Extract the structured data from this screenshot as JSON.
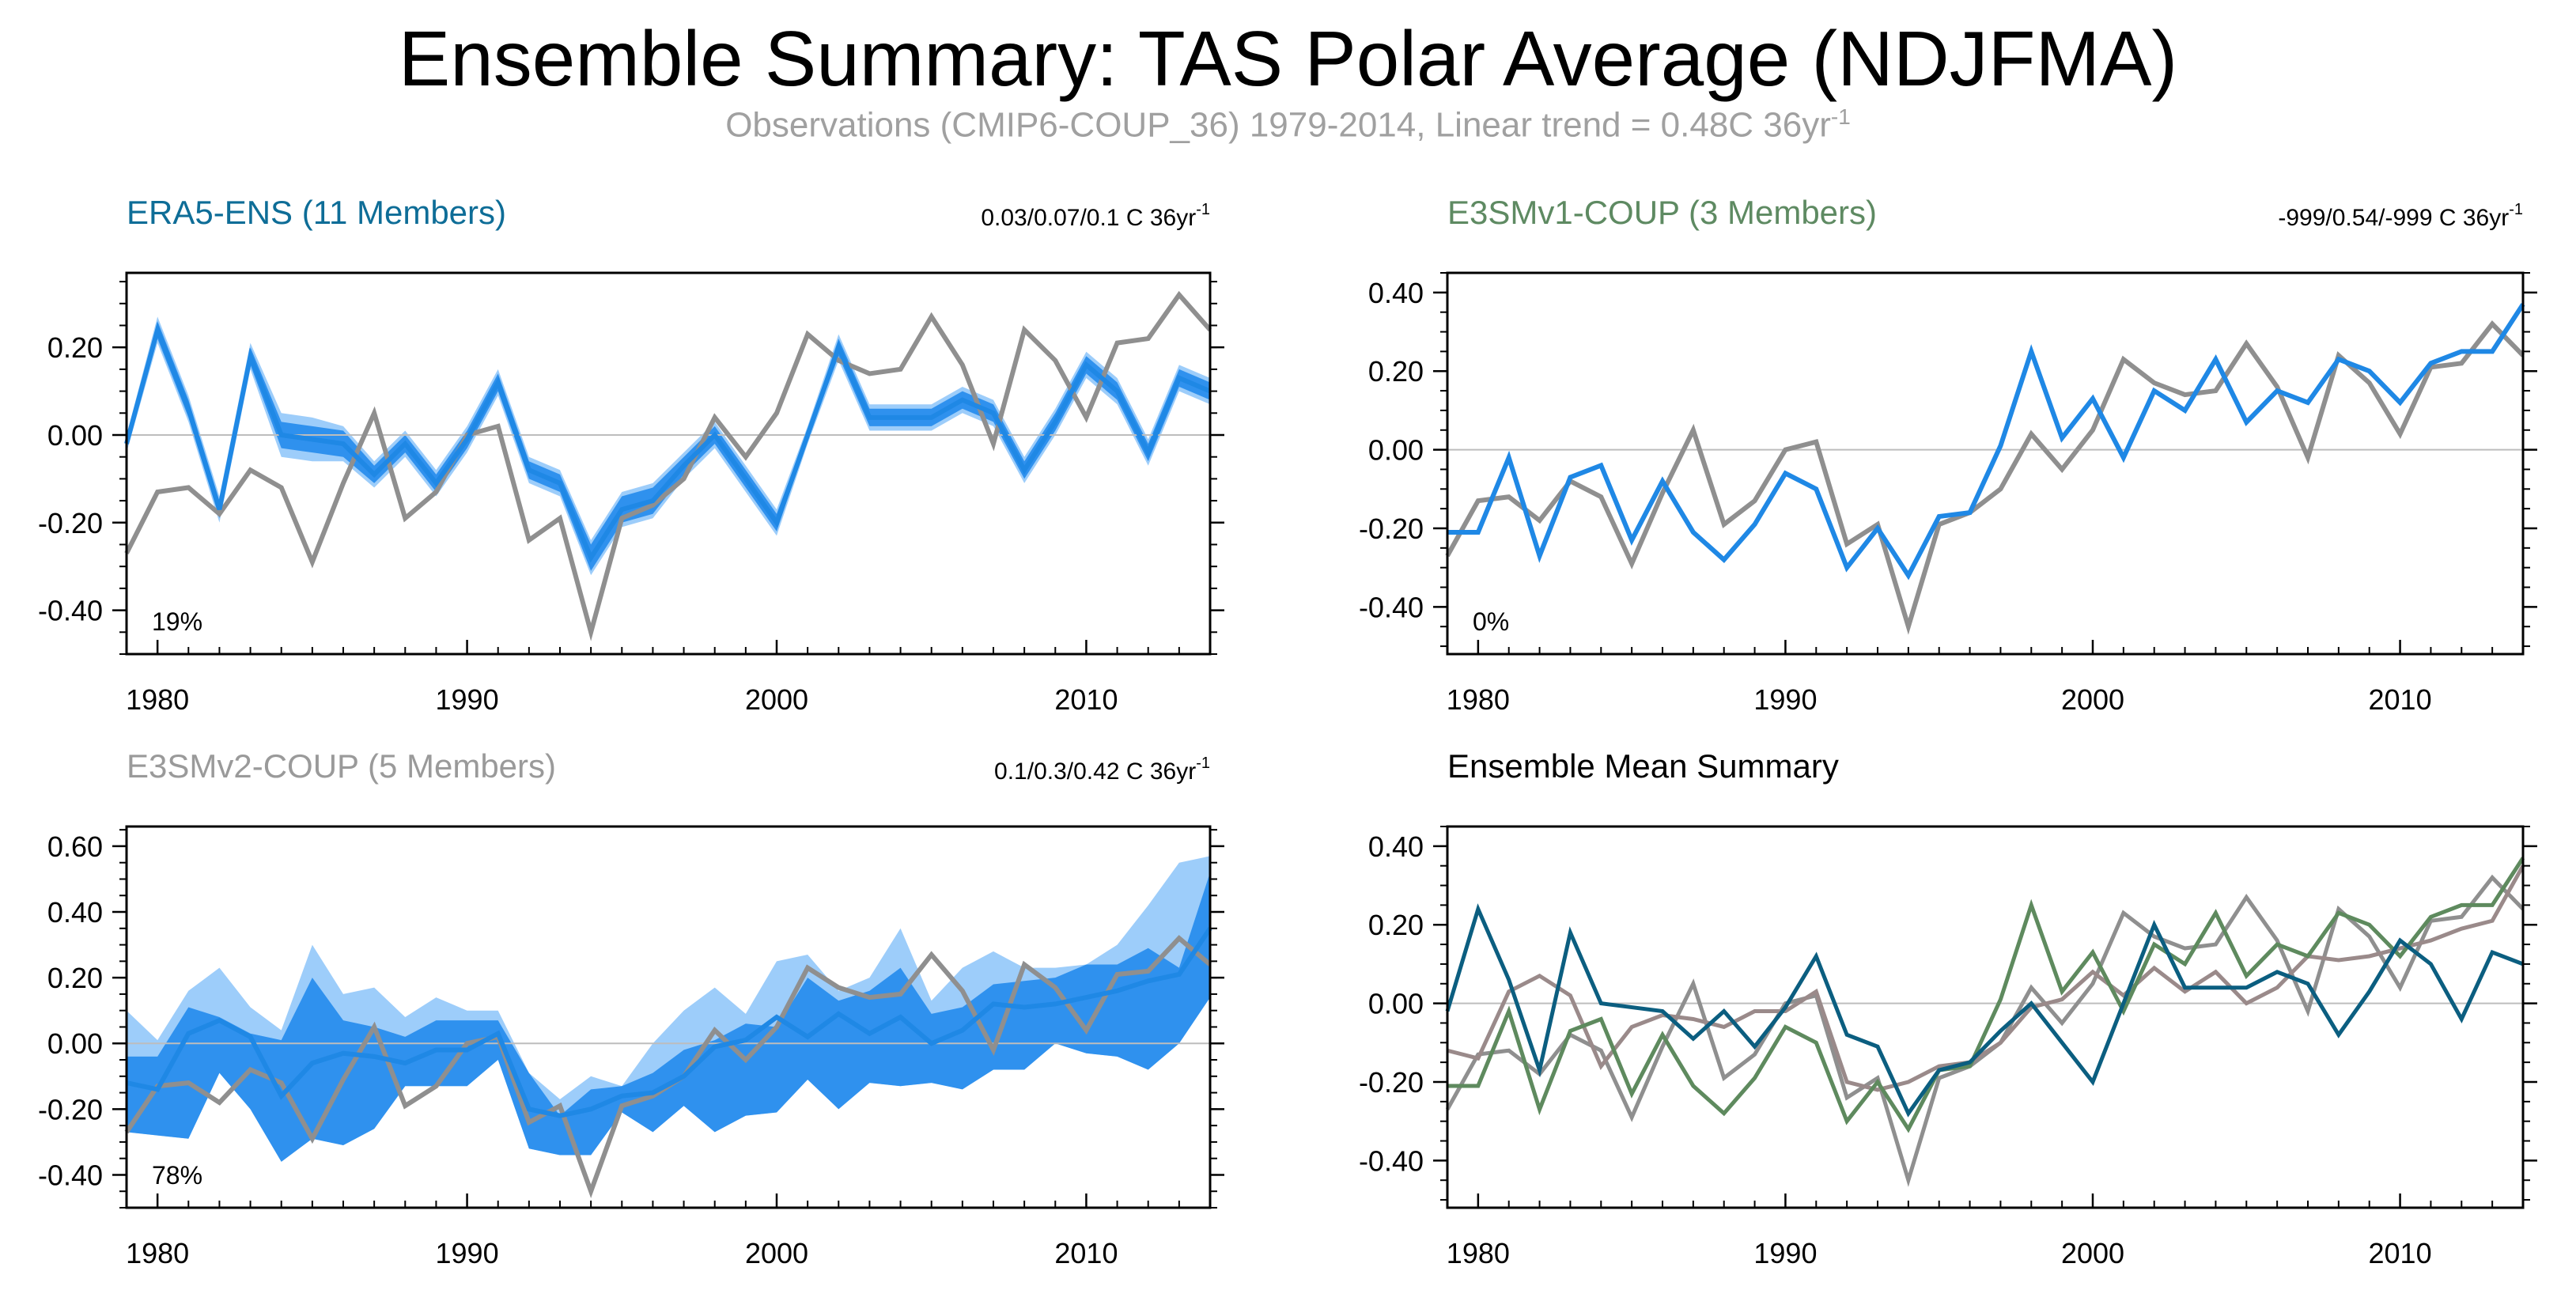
{
  "title": "Ensemble Summary: TAS Polar Average (NDJFMA)",
  "subtitle": "Observations (CMIP6-COUP_36) 1979-2014, Linear trend = 0.48C 36yr",
  "subtitle_sup": "-1",
  "colors": {
    "obs": "#8f8f8f",
    "model_line": "#1f88e5",
    "band_inner": "#2f91ee",
    "band_outer": "#9dcdfa",
    "era5_title": "#0e6d97",
    "e3smv1_title": "#5e8a62",
    "e3smv2_title": "#9a9a9a",
    "summary_era5": "#0b5e80",
    "summary_v1": "#5e8a5e",
    "summary_v2": "#9a8a8a"
  },
  "chart_data": [
    {
      "type": "line",
      "title": "ERA5-ENS (11 Members)",
      "trend_label": "0.03/0.07/0.1 C 36yr",
      "trend_sup": "-1",
      "percent_label": "19%",
      "xlim": [
        1979,
        2014
      ],
      "ylim": [
        -0.5,
        0.37
      ],
      "yticks": [
        -0.4,
        -0.2,
        0.0,
        0.2
      ],
      "ytick_labels": [
        "-0.40",
        "-0.20",
        "0.00",
        "0.20"
      ],
      "xticks": [
        1980,
        1990,
        2000,
        2010
      ],
      "xtick_labels": [
        "1980",
        "1990",
        "2000",
        "2010"
      ],
      "x_start": 1979,
      "observations": [
        -0.27,
        -0.13,
        -0.12,
        -0.18,
        -0.08,
        -0.12,
        -0.29,
        -0.11,
        0.05,
        -0.19,
        -0.13,
        0.0,
        0.02,
        -0.24,
        -0.19,
        -0.45,
        -0.19,
        -0.16,
        -0.1,
        0.04,
        -0.05,
        0.05,
        0.23,
        0.17,
        0.14,
        0.15,
        0.27,
        0.16,
        -0.02,
        0.24,
        0.17,
        0.04,
        0.21,
        0.22,
        0.32,
        0.24
      ],
      "mean": [
        -0.02,
        0.24,
        0.06,
        -0.17,
        0.18,
        0.0,
        -0.01,
        -0.02,
        -0.09,
        -0.02,
        -0.11,
        -0.01,
        0.12,
        -0.08,
        -0.11,
        -0.28,
        -0.17,
        -0.15,
        -0.07,
        0.0,
        -0.1,
        -0.2,
        0.0,
        0.2,
        0.04,
        0.04,
        0.04,
        0.08,
        0.05,
        -0.08,
        0.03,
        0.16,
        0.1,
        -0.04,
        0.13,
        0.1
      ],
      "band_inner_halfwidth": [
        0.01,
        0.02,
        0.02,
        0.02,
        0.02,
        0.03,
        0.03,
        0.03,
        0.02,
        0.02,
        0.02,
        0.02,
        0.02,
        0.02,
        0.02,
        0.03,
        0.03,
        0.03,
        0.02,
        0.02,
        0.02,
        0.02,
        0.01,
        0.02,
        0.02,
        0.02,
        0.02,
        0.02,
        0.02,
        0.02,
        0.02,
        0.02,
        0.02,
        0.02,
        0.02,
        0.02
      ],
      "band_outer_halfwidth": [
        0.02,
        0.03,
        0.03,
        0.03,
        0.03,
        0.05,
        0.05,
        0.04,
        0.03,
        0.03,
        0.03,
        0.03,
        0.03,
        0.03,
        0.03,
        0.04,
        0.04,
        0.04,
        0.03,
        0.03,
        0.03,
        0.03,
        0.02,
        0.03,
        0.03,
        0.03,
        0.03,
        0.03,
        0.03,
        0.03,
        0.03,
        0.03,
        0.03,
        0.03,
        0.03,
        0.03
      ]
    },
    {
      "type": "line",
      "title": "E3SMv1-COUP (3 Members)",
      "trend_label": "-999/0.54/-999 C 36yr",
      "trend_sup": "-1",
      "percent_label": "0%",
      "xlim": [
        1979,
        2014
      ],
      "ylim": [
        -0.52,
        0.45
      ],
      "yticks": [
        -0.4,
        -0.2,
        0.0,
        0.2,
        0.4
      ],
      "ytick_labels": [
        "-0.40",
        "-0.20",
        "0.00",
        "0.20",
        "0.40"
      ],
      "xticks": [
        1980,
        1990,
        2000,
        2010
      ],
      "xtick_labels": [
        "1980",
        "1990",
        "2000",
        "2010"
      ],
      "x_start": 1979,
      "observations": [
        -0.27,
        -0.13,
        -0.12,
        -0.18,
        -0.08,
        -0.12,
        -0.29,
        -0.11,
        0.05,
        -0.19,
        -0.13,
        0.0,
        0.02,
        -0.24,
        -0.19,
        -0.45,
        -0.19,
        -0.16,
        -0.1,
        0.04,
        -0.05,
        0.05,
        0.23,
        0.17,
        0.14,
        0.15,
        0.27,
        0.16,
        -0.02,
        0.24,
        0.17,
        0.04,
        0.21,
        0.22,
        0.32,
        0.24
      ],
      "mean": [
        -0.21,
        -0.21,
        -0.02,
        -0.27,
        -0.07,
        -0.04,
        -0.23,
        -0.08,
        -0.21,
        -0.28,
        -0.19,
        -0.06,
        -0.1,
        -0.3,
        -0.2,
        -0.32,
        -0.17,
        -0.16,
        0.01,
        0.25,
        0.03,
        0.13,
        -0.02,
        0.15,
        0.1,
        0.23,
        0.07,
        0.15,
        0.12,
        0.23,
        0.2,
        0.12,
        0.22,
        0.25,
        0.25,
        0.37
      ]
    },
    {
      "type": "line",
      "title": "E3SMv2-COUP (5 Members)",
      "trend_label": "0.1/0.3/0.42 C 36yr",
      "trend_sup": "-1",
      "percent_label": "78%",
      "xlim": [
        1979,
        2014
      ],
      "ylim": [
        -0.5,
        0.66
      ],
      "yticks": [
        -0.4,
        -0.2,
        0.0,
        0.2,
        0.4,
        0.6
      ],
      "ytick_labels": [
        "-0.40",
        "-0.20",
        "0.00",
        "0.20",
        "0.40",
        "0.60"
      ],
      "xticks": [
        1980,
        1990,
        2000,
        2010
      ],
      "xtick_labels": [
        "1980",
        "1990",
        "2000",
        "2010"
      ],
      "x_start": 1979,
      "observations": [
        -0.27,
        -0.13,
        -0.12,
        -0.18,
        -0.08,
        -0.12,
        -0.29,
        -0.11,
        0.05,
        -0.19,
        -0.13,
        0.0,
        0.02,
        -0.24,
        -0.19,
        -0.45,
        -0.19,
        -0.16,
        -0.1,
        0.04,
        -0.05,
        0.05,
        0.23,
        0.17,
        0.14,
        0.15,
        0.27,
        0.16,
        -0.02,
        0.24,
        0.17,
        0.04,
        0.21,
        0.22,
        0.32,
        0.24
      ],
      "mean": [
        -0.12,
        -0.14,
        0.03,
        0.07,
        0.02,
        -0.16,
        -0.06,
        -0.03,
        -0.04,
        -0.06,
        -0.02,
        -0.02,
        0.03,
        -0.2,
        -0.22,
        -0.2,
        -0.16,
        -0.15,
        -0.1,
        -0.01,
        0.01,
        0.08,
        0.02,
        0.09,
        0.03,
        0.08,
        0.0,
        0.04,
        0.12,
        0.11,
        0.12,
        0.14,
        0.16,
        0.19,
        0.21,
        0.35
      ],
      "band_inner": {
        "lower": [
          -0.27,
          -0.28,
          -0.29,
          -0.09,
          -0.2,
          -0.36,
          -0.29,
          -0.31,
          -0.26,
          -0.13,
          -0.13,
          -0.13,
          -0.05,
          -0.32,
          -0.34,
          -0.34,
          -0.21,
          -0.27,
          -0.19,
          -0.27,
          -0.22,
          -0.21,
          -0.11,
          -0.2,
          -0.12,
          -0.13,
          -0.12,
          -0.14,
          -0.08,
          -0.08,
          0.0,
          -0.03,
          -0.04,
          -0.08,
          0.0,
          0.14
        ],
        "upper": [
          -0.04,
          -0.04,
          0.11,
          0.08,
          0.03,
          0.01,
          0.2,
          0.07,
          0.05,
          0.02,
          0.07,
          0.07,
          0.07,
          -0.09,
          -0.22,
          -0.14,
          -0.13,
          -0.09,
          -0.02,
          0.01,
          0.06,
          0.05,
          0.2,
          0.13,
          0.16,
          0.23,
          0.09,
          0.11,
          0.18,
          0.19,
          0.2,
          0.24,
          0.24,
          0.29,
          0.23,
          0.52
        ]
      },
      "band_outer": {
        "lower": [
          -0.27,
          -0.28,
          -0.29,
          -0.09,
          -0.2,
          -0.36,
          -0.29,
          -0.31,
          -0.26,
          -0.13,
          -0.13,
          -0.13,
          -0.05,
          -0.32,
          -0.34,
          -0.34,
          -0.21,
          -0.27,
          -0.19,
          -0.27,
          -0.22,
          -0.21,
          -0.11,
          -0.2,
          -0.12,
          -0.13,
          -0.12,
          -0.14,
          -0.08,
          -0.08,
          0.0,
          -0.03,
          -0.04,
          -0.08,
          0.0,
          0.14
        ],
        "upper": [
          0.1,
          0.01,
          0.16,
          0.23,
          0.11,
          0.04,
          0.3,
          0.15,
          0.17,
          0.08,
          0.14,
          0.1,
          0.1,
          -0.09,
          -0.17,
          -0.1,
          -0.13,
          0.0,
          0.1,
          0.17,
          0.09,
          0.25,
          0.27,
          0.16,
          0.2,
          0.35,
          0.13,
          0.23,
          0.28,
          0.23,
          0.23,
          0.24,
          0.3,
          0.42,
          0.55,
          0.57
        ]
      }
    },
    {
      "type": "line",
      "title": "Ensemble Mean Summary",
      "xlim": [
        1979,
        2014
      ],
      "ylim": [
        -0.52,
        0.45
      ],
      "yticks": [
        -0.4,
        -0.2,
        0.0,
        0.2,
        0.4
      ],
      "ytick_labels": [
        "-0.40",
        "-0.20",
        "0.00",
        "0.20",
        "0.40"
      ],
      "xticks": [
        1980,
        1990,
        2000,
        2010
      ],
      "xtick_labels": [
        "1980",
        "1990",
        "2000",
        "2010"
      ],
      "x_start": 1979,
      "series": [
        {
          "color_key": "obs",
          "values": [
            -0.27,
            -0.13,
            -0.12,
            -0.18,
            -0.08,
            -0.12,
            -0.29,
            -0.11,
            0.05,
            -0.19,
            -0.13,
            0.0,
            0.02,
            -0.24,
            -0.19,
            -0.45,
            -0.19,
            -0.16,
            -0.1,
            0.04,
            -0.05,
            0.05,
            0.23,
            0.17,
            0.14,
            0.15,
            0.27,
            0.16,
            -0.02,
            0.24,
            0.17,
            0.04,
            0.21,
            0.22,
            0.32,
            0.24
          ]
        },
        {
          "color_key": "summary_v2",
          "values": [
            -0.12,
            -0.14,
            0.03,
            0.07,
            0.02,
            -0.16,
            -0.06,
            -0.03,
            -0.04,
            -0.06,
            -0.02,
            -0.02,
            0.03,
            -0.2,
            -0.22,
            -0.2,
            -0.16,
            -0.15,
            -0.1,
            -0.01,
            0.01,
            0.08,
            0.02,
            0.09,
            0.03,
            0.08,
            0.0,
            0.04,
            0.12,
            0.11,
            0.12,
            0.14,
            0.16,
            0.19,
            0.21,
            0.35
          ]
        },
        {
          "color_key": "summary_v1",
          "values": [
            -0.21,
            -0.21,
            -0.02,
            -0.27,
            -0.07,
            -0.04,
            -0.23,
            -0.08,
            -0.21,
            -0.28,
            -0.19,
            -0.06,
            -0.1,
            -0.3,
            -0.2,
            -0.32,
            -0.17,
            -0.16,
            0.01,
            0.25,
            0.03,
            0.13,
            -0.02,
            0.15,
            0.1,
            0.23,
            0.07,
            0.15,
            0.12,
            0.23,
            0.2,
            0.12,
            0.22,
            0.25,
            0.25,
            0.37
          ]
        },
        {
          "color_key": "summary_era5",
          "values": [
            -0.02,
            0.24,
            0.06,
            -0.17,
            0.18,
            0.0,
            -0.01,
            -0.02,
            -0.09,
            -0.02,
            -0.11,
            -0.01,
            0.12,
            -0.08,
            -0.11,
            -0.28,
            -0.17,
            -0.15,
            -0.07,
            0.0,
            -0.1,
            -0.2,
            0.0,
            0.2,
            0.04,
            0.04,
            0.04,
            0.08,
            0.05,
            -0.08,
            0.03,
            0.16,
            0.1,
            -0.04,
            0.13,
            0.1
          ]
        }
      ]
    }
  ]
}
